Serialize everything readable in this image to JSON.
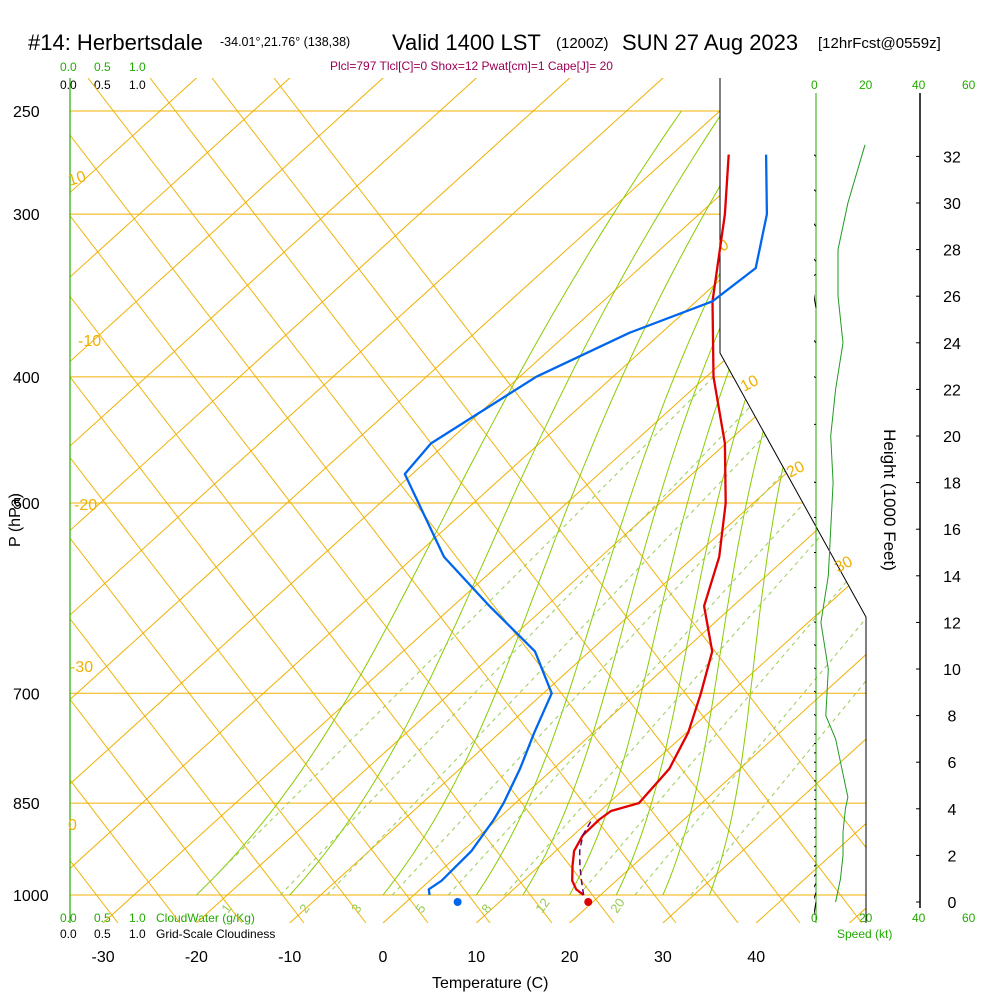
{
  "header": {
    "title": "#14: Herbertsdale",
    "coords": "-34.01°,21.76° (138,38)",
    "valid": "Valid 1400 LST",
    "utc": "(1200Z)",
    "date": "SUN 27 Aug 2023",
    "forecast": "[12hrFcst@0559z]",
    "indices": "Plcl=797 Tlcl[C]=0 Shox=12 Pwat[cm]=1 Cape[J]= 20"
  },
  "scales": {
    "cloudwater_ticks": [
      "0.0",
      "0.5",
      "1.0"
    ],
    "cloudiness_ticks": [
      "0.0",
      "0.5",
      "1.0"
    ],
    "cloudwater_label": "CloudWater (g/Kg)",
    "cloudiness_label": "Grid-Scale Cloudiness",
    "speed_ticks": [
      "0",
      "20",
      "40",
      "60"
    ],
    "speed_label": "Speed (kt)"
  },
  "colors": {
    "isotherm": "#f0b000",
    "dry_adiabat": "#88cc00",
    "mixing_ratio": "#99cc55",
    "temperature": "#e00000",
    "dewpoint": "#0066ee",
    "indices": "#990055",
    "green_axis": "#22aa00"
  },
  "chart_data": {
    "type": "line",
    "title": "",
    "xlabel": "Temperature (C)",
    "ylabel": "P (hPa)",
    "y2label": "Height (1000 Feet)",
    "xlim": [
      -35,
      35
    ],
    "pressure_range": [
      1000,
      250
    ],
    "x_ticks": [
      -30,
      -20,
      -10,
      0,
      10,
      20,
      30,
      40
    ],
    "pressure_levels": [
      250,
      300,
      400,
      500,
      700,
      850,
      1000
    ],
    "height_ticks": [
      0,
      2,
      4,
      6,
      8,
      10,
      12,
      14,
      16,
      18,
      20,
      22,
      24,
      26,
      28,
      30,
      32
    ],
    "isotherm_labels": [
      "10",
      "0",
      "-10",
      "-20",
      "-30",
      "0",
      "10",
      "20",
      "30"
    ],
    "mixing_ratio_labels": [
      "1",
      "2",
      "3",
      "5",
      "8",
      "12",
      "20"
    ],
    "series": [
      {
        "name": "Temperature",
        "pressure": [
          1000,
          990,
          975,
          950,
          925,
          900,
          875,
          862,
          850,
          800,
          750,
          700,
          650,
          600,
          550,
          500,
          450,
          400,
          350,
          300,
          270
        ],
        "values": [
          21.5,
          20.0,
          18.5,
          16.7,
          15.0,
          14.0,
          13.8,
          14.0,
          16.0,
          15.0,
          12.5,
          9.0,
          5.0,
          -1.5,
          -6.0,
          -12.0,
          -19.5,
          -29.0,
          -38.5,
          -48.0,
          -55.0
        ]
      },
      {
        "name": "Dewpoint",
        "pressure": [
          1000,
          990,
          975,
          925,
          875,
          850,
          800,
          750,
          700,
          650,
          600,
          550,
          475,
          450,
          400,
          370,
          350,
          330,
          300,
          270
        ],
        "values": [
          5.0,
          4.2,
          4.5,
          4.0,
          2.5,
          1.5,
          -1.0,
          -4.0,
          -7.0,
          -14.0,
          -24.5,
          -35.5,
          -50.0,
          -51.0,
          -48.0,
          -43.5,
          -38.5,
          -38.0,
          -43.5,
          -51.0
        ]
      }
    ],
    "surface_temperature": 22,
    "surface_dewpoint": 8,
    "wind_barbs": [
      {
        "height_kft": 0.0,
        "dir": 190,
        "spd": 5
      },
      {
        "height_kft": 0.4,
        "dir": 200,
        "spd": 5
      },
      {
        "height_kft": 0.8,
        "dir": 210,
        "spd": 5
      },
      {
        "height_kft": 1.2,
        "dir": 220,
        "spd": 5
      },
      {
        "height_kft": 1.6,
        "dir": 230,
        "spd": 5
      },
      {
        "height_kft": 2.0,
        "dir": 240,
        "spd": 5
      },
      {
        "height_kft": 2.4,
        "dir": 245,
        "spd": 5
      },
      {
        "height_kft": 2.8,
        "dir": 250,
        "spd": 5
      },
      {
        "height_kft": 3.2,
        "dir": 250,
        "spd": 10
      },
      {
        "height_kft": 3.6,
        "dir": 255,
        "spd": 10
      },
      {
        "height_kft": 4.0,
        "dir": 260,
        "spd": 10
      },
      {
        "height_kft": 4.4,
        "dir": 265,
        "spd": 10
      },
      {
        "height_kft": 4.8,
        "dir": 270,
        "spd": 10
      },
      {
        "height_kft": 5.2,
        "dir": 270,
        "spd": 10
      },
      {
        "height_kft": 5.6,
        "dir": 270,
        "spd": 10
      },
      {
        "height_kft": 6.0,
        "dir": 270,
        "spd": 10
      },
      {
        "height_kft": 6.4,
        "dir": 270,
        "spd": 10
      },
      {
        "height_kft": 6.8,
        "dir": 270,
        "spd": 10
      },
      {
        "height_kft": 7.2,
        "dir": 270,
        "spd": 10
      },
      {
        "height_kft": 8.0,
        "dir": 300,
        "spd": 5
      },
      {
        "height_kft": 9.0,
        "dir": 300,
        "spd": 5
      },
      {
        "height_kft": 10.0,
        "dir": 300,
        "spd": 5
      },
      {
        "height_kft": 11.0,
        "dir": 300,
        "spd": 5
      },
      {
        "height_kft": 12.0,
        "dir": 280,
        "spd": 5
      },
      {
        "height_kft": 13.5,
        "dir": 265,
        "spd": 5
      },
      {
        "height_kft": 15.0,
        "dir": 270,
        "spd": 5
      },
      {
        "height_kft": 16.5,
        "dir": 275,
        "spd": 5
      },
      {
        "height_kft": 18.0,
        "dir": 285,
        "spd": 5
      },
      {
        "height_kft": 20.5,
        "dir": 270,
        "spd": 5
      },
      {
        "height_kft": 22.5,
        "dir": 300,
        "spd": 5
      },
      {
        "height_kft": 24.0,
        "dir": 320,
        "spd": 5
      },
      {
        "height_kft": 25.5,
        "dir": 350,
        "spd": 5
      },
      {
        "height_kft": 27.5,
        "dir": 315,
        "spd": 10
      },
      {
        "height_kft": 29.0,
        "dir": 320,
        "spd": 10
      },
      {
        "height_kft": 30.5,
        "dir": 310,
        "spd": 10
      },
      {
        "height_kft": 32.0,
        "dir": 310,
        "spd": 10
      }
    ],
    "wind_speed_profile": {
      "height_kft": [
        0,
        1,
        2,
        3,
        4,
        4.5,
        5,
        6,
        7,
        8,
        10,
        12,
        14,
        16,
        18,
        20,
        22,
        24,
        26,
        28,
        30,
        32.5
      ],
      "speed_kt": [
        8,
        10,
        11,
        11,
        12,
        13,
        12,
        10,
        8,
        4,
        5,
        2,
        5,
        6,
        7,
        6,
        8,
        11,
        9,
        9,
        13,
        20
      ]
    }
  }
}
